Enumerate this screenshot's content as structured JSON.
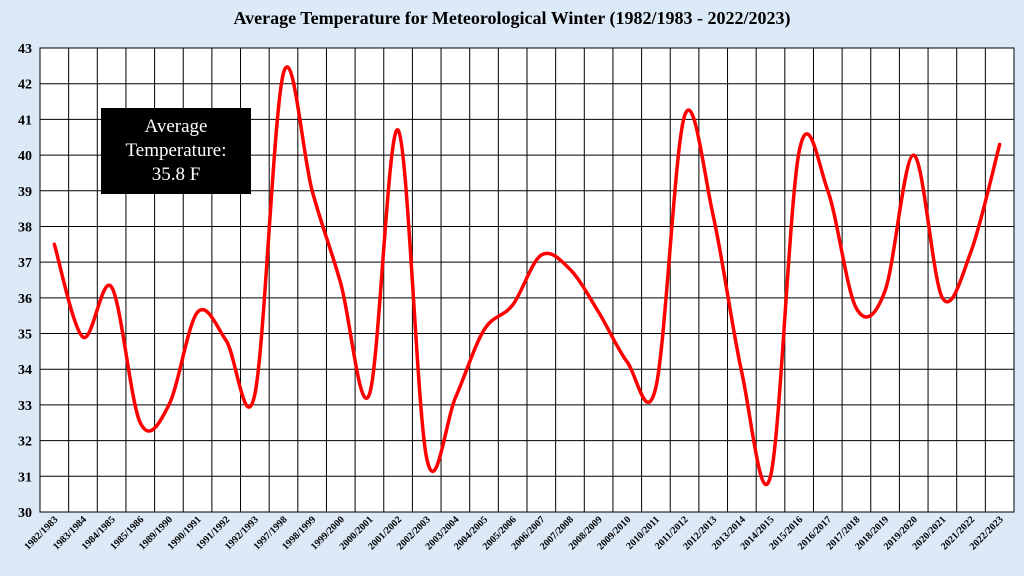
{
  "chart_data": {
    "type": "line",
    "title": "Average Temperature for Meteorological Winter (1982/1983 - 2022/2023)",
    "xlabel": "",
    "ylabel": "",
    "ylim": [
      30,
      43
    ],
    "yticks": [
      30,
      31,
      32,
      33,
      34,
      35,
      36,
      37,
      38,
      39,
      40,
      41,
      42,
      43
    ],
    "grid": true,
    "smooth": true,
    "line_color": "#ff0000",
    "categories": [
      "1982/1983",
      "1983/1984",
      "1984/1985",
      "1985/1986",
      "1989/1990",
      "1990/1991",
      "1991/1992",
      "1992/1993",
      "1997/1998",
      "1998/1999",
      "1999/2000",
      "2000/2001",
      "2001/2002",
      "2002/2003",
      "2003/2004",
      "2004/2005",
      "2005/2006",
      "2006/2007",
      "2007/2008",
      "2008/2009",
      "2009/2010",
      "2010/2011",
      "2011/2012",
      "2012/2013",
      "2013/2014",
      "2014/2015",
      "2015/2016",
      "2016/2017",
      "2017/2018",
      "2018/2019",
      "2019/2020",
      "2020/2021",
      "2021/2022",
      "2022/2023"
    ],
    "series": [
      {
        "values": [
          37.5,
          34.9,
          36.3,
          32.5,
          33.0,
          35.6,
          34.8,
          33.3,
          42.3,
          39.0,
          36.4,
          33.3,
          40.7,
          31.5,
          33.2,
          35.1,
          35.8,
          37.2,
          36.8,
          35.6,
          34.2,
          33.5,
          41.1,
          38.3,
          33.9,
          31.0,
          40.1,
          39.0,
          35.7,
          36.2,
          40.0,
          36.0,
          37.3,
          40.3
        ]
      }
    ],
    "annotation": {
      "line1": "Average",
      "line2": "Temperature:",
      "line3": "35.8 F"
    }
  }
}
